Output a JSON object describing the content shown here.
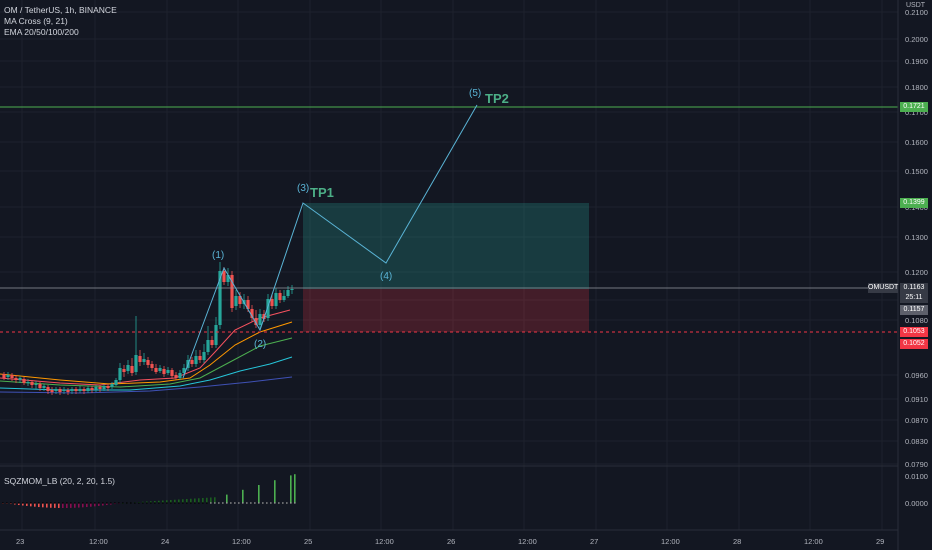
{
  "legend": {
    "symbol": "OM / TetherUS, 1h, BINANCE",
    "ind1": "MA Cross (9, 21)",
    "ind2": "EMA 20/50/100/200"
  },
  "oscillator": {
    "label": "SQZMOM_LB (20, 2, 20, 1.5)",
    "ticks": [
      "0.0100",
      "0.0000"
    ]
  },
  "currency": "USDT",
  "price_axis": [
    "0.2100",
    "0.2000",
    "0.1900",
    "0.1800",
    "0.1700",
    "0.1600",
    "0.1500",
    "0.1400",
    "0.1300",
    "0.1200",
    "0.1100",
    "0.1080",
    "0.0960",
    "0.0910",
    "0.0870",
    "0.0830",
    "0.0790"
  ],
  "time_axis": [
    "23",
    "12:00",
    "24",
    "12:00",
    "25",
    "12:00",
    "26",
    "12:00",
    "27",
    "12:00",
    "28",
    "12:00",
    "29"
  ],
  "tags": {
    "tp2": "0.1721",
    "tp1": "0.1399",
    "symbol": "OMUSDT",
    "current": "0.1163",
    "countdown": "25:11",
    "entry": "0.1157",
    "stop1": "0.1053",
    "stop2": "0.1052"
  },
  "colors": {
    "up": "#26a69a",
    "down": "#ef5350",
    "tp": "#4caf50",
    "stop": "#f23645",
    "wave": "#5ab4d6"
  },
  "waves": [
    "(1)",
    "(2)",
    "(3)",
    "(4)",
    "(5)"
  ],
  "targets": {
    "tp1": "TP1",
    "tp2": "TP2"
  }
}
